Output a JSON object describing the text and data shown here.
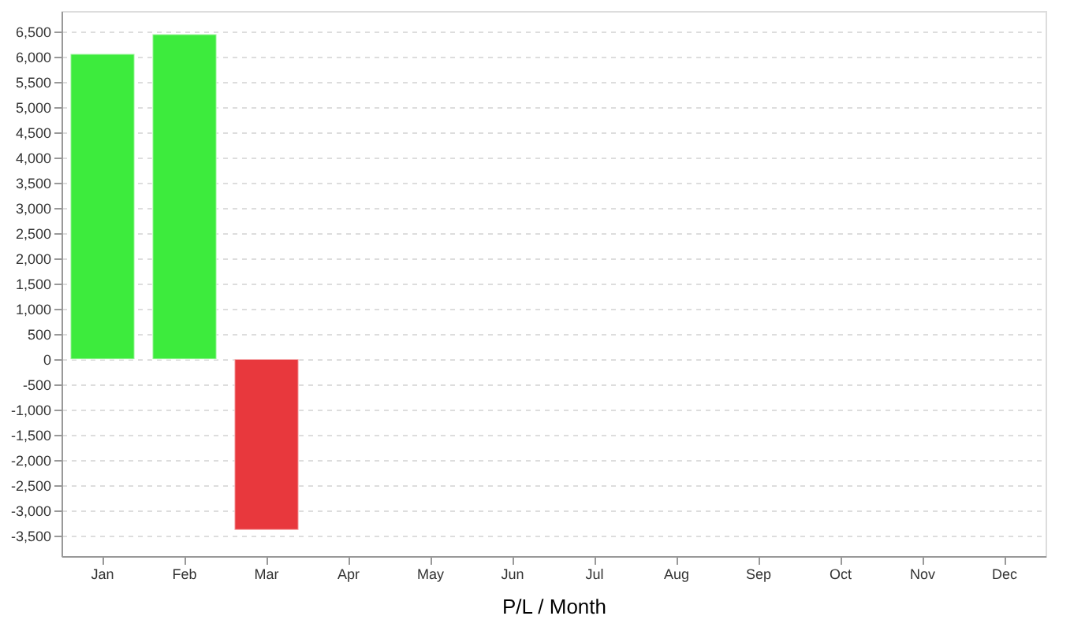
{
  "chart_data": {
    "type": "bar",
    "xlabel": "P/L / Month",
    "categories": [
      "Jan",
      "Feb",
      "Mar",
      "Apr",
      "May",
      "Jun",
      "Jul",
      "Aug",
      "Sep",
      "Oct",
      "Nov",
      "Dec"
    ],
    "values": [
      6050,
      6440,
      -3380,
      null,
      null,
      null,
      null,
      null,
      null,
      null,
      null,
      null
    ],
    "colors": [
      "#3deb3d",
      "#3deb3d",
      "#e8383d",
      null,
      null,
      null,
      null,
      null,
      null,
      null,
      null,
      null
    ],
    "ylim": [
      -3900,
      6900
    ],
    "yticks": [
      {
        "value": -3500,
        "label": "-3,500"
      },
      {
        "value": -3000,
        "label": "-3,000"
      },
      {
        "value": -2500,
        "label": "-2,500"
      },
      {
        "value": -2000,
        "label": "-2,000"
      },
      {
        "value": -1500,
        "label": "-1,500"
      },
      {
        "value": -1000,
        "label": "-1,000"
      },
      {
        "value": -500,
        "label": "-500"
      },
      0,
      500,
      {
        "value": 1000,
        "label": "1,000"
      },
      {
        "value": 1500,
        "label": "1,500"
      },
      {
        "value": 2000,
        "label": "2,000"
      },
      {
        "value": 2500,
        "label": "2,500"
      },
      {
        "value": 3000,
        "label": "3,000"
      },
      {
        "value": 3500,
        "label": "3,500"
      },
      {
        "value": 4000,
        "label": "4,000"
      },
      {
        "value": 4500,
        "label": "4,500"
      },
      {
        "value": 5000,
        "label": "5,000"
      },
      {
        "value": 5500,
        "label": "5,500"
      },
      {
        "value": 6000,
        "label": "6,000"
      },
      {
        "value": 6500,
        "label": "6,500"
      }
    ],
    "grid": "y"
  }
}
